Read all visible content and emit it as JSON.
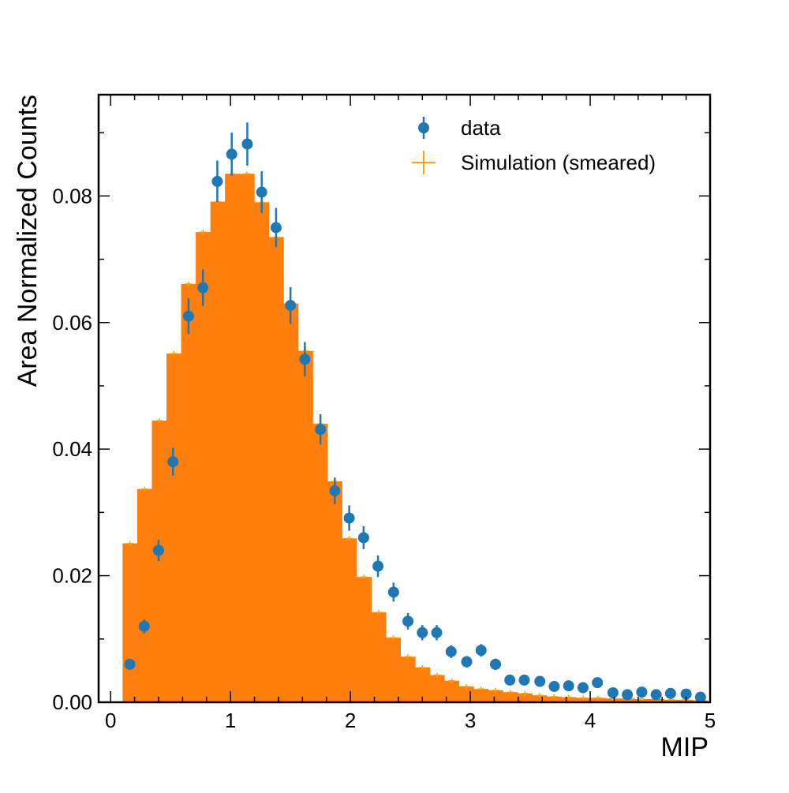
{
  "chart_data": {
    "type": "bar",
    "xlabel": "MIP",
    "ylabel": "Area Normalized Counts",
    "xlim": [
      -0.1,
      5
    ],
    "ylim": [
      0,
      0.096
    ],
    "x_ticks": [
      "0",
      "1",
      "2",
      "3",
      "4",
      "5"
    ],
    "y_ticks": [
      "0.00",
      "0.02",
      "0.04",
      "0.06",
      "0.08"
    ],
    "grid": false,
    "legend_position": "top-right",
    "bin_edges": [
      0.1,
      0.222,
      0.344,
      0.466,
      0.588,
      0.71,
      0.832,
      0.954,
      1.076,
      1.198,
      1.32,
      1.442,
      1.564,
      1.686,
      1.808,
      1.93,
      2.052,
      2.174,
      2.296,
      2.418,
      2.54,
      2.662,
      2.784,
      2.906,
      3.028,
      3.15,
      3.272,
      3.394,
      3.516,
      3.638,
      3.76,
      3.882,
      4.004,
      4.126,
      4.248,
      4.37,
      4.492,
      4.614,
      4.736,
      4.858,
      4.98
    ],
    "series": [
      {
        "name": "Simulation (smeared)",
        "kind": "histogram",
        "color": "#ff7f0e",
        "marker_color": "#ffa500",
        "values": [
          0.0251,
          0.0337,
          0.0445,
          0.0551,
          0.0661,
          0.0743,
          0.0791,
          0.0835,
          0.0835,
          0.079,
          0.0735,
          0.063,
          0.0555,
          0.044,
          0.0349,
          0.0259,
          0.0198,
          0.0142,
          0.0102,
          0.0072,
          0.0055,
          0.0043,
          0.0034,
          0.0025,
          0.0021,
          0.0019,
          0.0016,
          0.0014,
          0.0011,
          0.0009,
          0.0008,
          0.0007,
          0.0007,
          0.0006,
          0.0006,
          0.0005,
          0.0005,
          0.0004,
          0.0004,
          0.0003
        ]
      },
      {
        "name": "data",
        "kind": "errorbar",
        "color": "#1f77b4",
        "x": [
          0.16,
          0.28,
          0.4,
          0.52,
          0.65,
          0.77,
          0.89,
          1.01,
          1.14,
          1.26,
          1.38,
          1.5,
          1.62,
          1.75,
          1.87,
          1.99,
          2.11,
          2.23,
          2.36,
          2.48,
          2.6,
          2.72,
          2.84,
          2.97,
          3.09,
          3.21,
          3.33,
          3.45,
          3.58,
          3.7,
          3.82,
          3.94,
          4.06,
          4.19,
          4.31,
          4.43,
          4.55,
          4.67,
          4.8,
          4.92
        ],
        "y": [
          0.006,
          0.012,
          0.024,
          0.038,
          0.061,
          0.0655,
          0.0823,
          0.0866,
          0.0882,
          0.0806,
          0.075,
          0.0627,
          0.0542,
          0.0431,
          0.0334,
          0.0291,
          0.026,
          0.0215,
          0.0174,
          0.0128,
          0.011,
          0.011,
          0.008,
          0.0064,
          0.0082,
          0.006,
          0.0035,
          0.0035,
          0.0033,
          0.0025,
          0.0026,
          0.0023,
          0.0031,
          0.0015,
          0.0012,
          0.0016,
          0.0012,
          0.0014,
          0.0013,
          0.0008
        ],
        "yerr": [
          0.0006,
          0.0011,
          0.0017,
          0.0022,
          0.0028,
          0.0029,
          0.0033,
          0.0034,
          0.0034,
          0.0033,
          0.0031,
          0.0029,
          0.0027,
          0.0024,
          0.0021,
          0.002,
          0.0018,
          0.0017,
          0.0015,
          0.0013,
          0.0012,
          0.0012,
          0.001,
          0.0009,
          0.001,
          0.0009,
          0.0007,
          0.0007,
          0.0007,
          0.0006,
          0.0006,
          0.0006,
          0.0007,
          0.0005,
          0.0004,
          0.0005,
          0.0004,
          0.0005,
          0.0004,
          0.0003
        ]
      }
    ]
  }
}
